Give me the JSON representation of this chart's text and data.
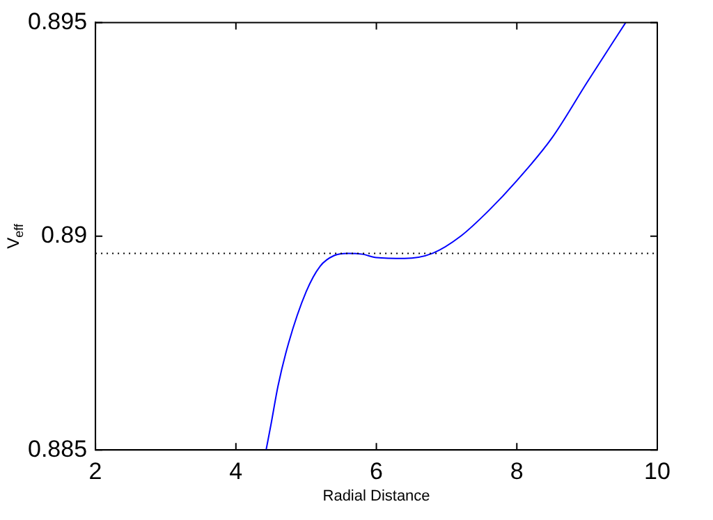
{
  "chart_data": {
    "type": "line",
    "xlabel": "Radial Distance",
    "ylabel": "V$_{eff}$",
    "x": [
      4.43,
      4.5,
      4.6,
      4.75,
      5.0,
      5.2,
      5.4,
      5.6,
      5.8,
      6.0,
      6.4,
      6.8,
      7.2,
      7.6,
      8.0,
      8.5,
      9.0,
      9.55
    ],
    "series": [
      {
        "color": "#0000ff",
        "values": [
          0.885,
          0.8856,
          0.8865,
          0.8875,
          0.8887,
          0.8893,
          0.88955,
          0.8896,
          0.88958,
          0.8895,
          0.88948,
          0.8896,
          0.89,
          0.8906,
          0.8913,
          0.8923,
          0.8936,
          0.895
        ]
      }
    ],
    "xlim": [
      2,
      10
    ],
    "xticks": [
      2,
      4,
      6,
      8,
      10
    ],
    "ylim": [
      0.885,
      0.895
    ],
    "yticks": [
      0.885,
      0.89,
      0.895
    ],
    "ref_lines": [
      {
        "axis": "y",
        "value": 0.8896,
        "color": "#000000",
        "line_style": "dotted"
      }
    ],
    "grid": false,
    "legend": false,
    "marker": "none",
    "line_style": "solid"
  }
}
